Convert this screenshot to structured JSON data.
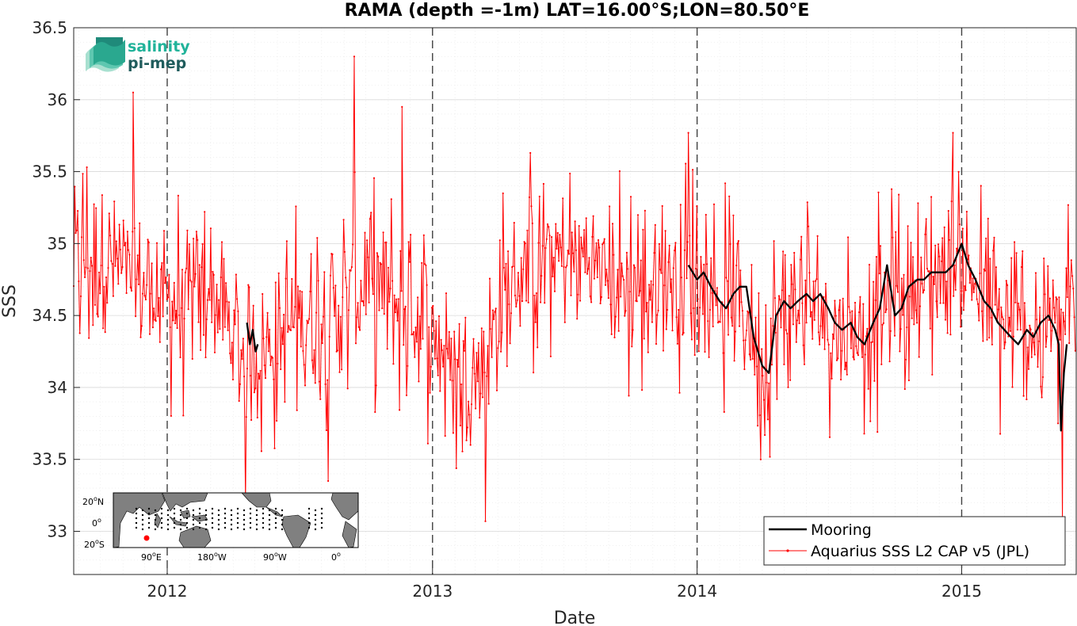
{
  "chart_data": {
    "type": "line",
    "title": "RAMA (depth =-1m) LAT=16.00°S;LON=80.50°E",
    "xlabel": "Date",
    "ylabel": "SSS",
    "xlim": [
      "2011-08-25",
      "2015-06-08"
    ],
    "ylim": [
      32.7,
      36.5
    ],
    "x_ticks": [
      "2012",
      "2013",
      "2014",
      "2015"
    ],
    "y_ticks": [
      "33",
      "33.5",
      "34",
      "34.5",
      "35",
      "35.5",
      "36",
      "36.5"
    ],
    "grid": true,
    "legend_position": "bottom-right",
    "year_markers": [
      "2012-01-01",
      "2013-01-01",
      "2014-01-01",
      "2015-01-01"
    ],
    "series": [
      {
        "name": "Mooring",
        "color": "#000000",
        "segments": [
          {
            "x": [
              "2012-04-20",
              "2012-04-24",
              "2012-04-28",
              "2012-05-02",
              "2012-05-05"
            ],
            "y": [
              34.45,
              34.3,
              34.4,
              34.25,
              34.3
            ]
          },
          {
            "x": [
              "2013-12-20",
              "2014-01-01",
              "2014-01-10",
              "2014-01-20",
              "2014-02-01",
              "2014-02-10",
              "2014-02-20",
              "2014-03-01",
              "2014-03-10",
              "2014-03-20",
              "2014-04-01",
              "2014-04-10",
              "2014-04-20",
              "2014-05-01",
              "2014-05-10",
              "2014-05-20",
              "2014-06-01",
              "2014-06-10",
              "2014-06-20",
              "2014-07-01",
              "2014-07-10",
              "2014-07-20",
              "2014-08-01",
              "2014-08-10",
              "2014-08-20",
              "2014-09-01",
              "2014-09-10",
              "2014-09-20",
              "2014-10-01",
              "2014-10-10",
              "2014-10-20",
              "2014-11-01",
              "2014-11-10",
              "2014-11-20",
              "2014-12-01",
              "2014-12-10",
              "2014-12-20",
              "2015-01-01",
              "2015-01-10",
              "2015-01-20",
              "2015-02-01",
              "2015-02-10",
              "2015-02-20",
              "2015-03-01",
              "2015-03-10",
              "2015-03-20",
              "2015-04-01",
              "2015-04-10",
              "2015-04-20",
              "2015-05-01",
              "2015-05-10",
              "2015-05-15",
              "2015-05-18",
              "2015-05-22",
              "2015-05-26"
            ],
            "y": [
              34.85,
              34.75,
              34.8,
              34.7,
              34.6,
              34.55,
              34.65,
              34.7,
              34.7,
              34.35,
              34.15,
              34.1,
              34.5,
              34.6,
              34.55,
              34.6,
              34.65,
              34.6,
              34.65,
              34.55,
              34.45,
              34.4,
              34.45,
              34.35,
              34.3,
              34.45,
              34.55,
              34.85,
              34.5,
              34.55,
              34.7,
              34.75,
              34.75,
              34.8,
              34.8,
              34.8,
              34.85,
              35.0,
              34.85,
              34.75,
              34.6,
              34.55,
              34.45,
              34.4,
              34.35,
              34.3,
              34.4,
              34.35,
              34.45,
              34.5,
              34.4,
              34.3,
              33.7,
              34.1,
              34.3
            ]
          }
        ]
      },
      {
        "name": "Aquarius SSS L2 CAP v5 (JPL)",
        "color": "#ff0000",
        "x_start": "2011-08-25",
        "x_end": "2015-06-08",
        "anchors": [
          {
            "x": "2011-09-01",
            "y": 34.9
          },
          {
            "x": "2011-10-01",
            "y": 34.9
          },
          {
            "x": "2011-11-01",
            "y": 34.8
          },
          {
            "x": "2011-12-01",
            "y": 34.7
          },
          {
            "x": "2012-01-01",
            "y": 34.6
          },
          {
            "x": "2012-02-01",
            "y": 34.6
          },
          {
            "x": "2012-03-01",
            "y": 34.7
          },
          {
            "x": "2012-04-01",
            "y": 34.3
          },
          {
            "x": "2012-05-01",
            "y": 34.2
          },
          {
            "x": "2012-06-01",
            "y": 34.3
          },
          {
            "x": "2012-07-01",
            "y": 34.5
          },
          {
            "x": "2012-08-01",
            "y": 34.5
          },
          {
            "x": "2012-09-01",
            "y": 34.6
          },
          {
            "x": "2012-10-01",
            "y": 34.7
          },
          {
            "x": "2012-11-01",
            "y": 34.6
          },
          {
            "x": "2012-12-01",
            "y": 34.6
          },
          {
            "x": "2013-01-01",
            "y": 34.4
          },
          {
            "x": "2013-02-01",
            "y": 34.1
          },
          {
            "x": "2013-03-01",
            "y": 34.1
          },
          {
            "x": "2013-04-01",
            "y": 34.5
          },
          {
            "x": "2013-05-01",
            "y": 34.8
          },
          {
            "x": "2013-06-01",
            "y": 34.9
          },
          {
            "x": "2013-07-01",
            "y": 34.9
          },
          {
            "x": "2013-08-01",
            "y": 34.9
          },
          {
            "x": "2013-09-01",
            "y": 34.8
          },
          {
            "x": "2013-10-01",
            "y": 34.7
          },
          {
            "x": "2013-11-01",
            "y": 34.7
          },
          {
            "x": "2013-12-01",
            "y": 34.8
          },
          {
            "x": "2014-01-01",
            "y": 34.8
          },
          {
            "x": "2014-02-01",
            "y": 34.6
          },
          {
            "x": "2014-03-01",
            "y": 34.6
          },
          {
            "x": "2014-04-01",
            "y": 34.2
          },
          {
            "x": "2014-05-01",
            "y": 34.5
          },
          {
            "x": "2014-06-01",
            "y": 34.6
          },
          {
            "x": "2014-07-01",
            "y": 34.5
          },
          {
            "x": "2014-08-01",
            "y": 34.4
          },
          {
            "x": "2014-09-01",
            "y": 34.5
          },
          {
            "x": "2014-10-01",
            "y": 34.6
          },
          {
            "x": "2014-11-01",
            "y": 34.7
          },
          {
            "x": "2014-12-01",
            "y": 34.8
          },
          {
            "x": "2015-01-01",
            "y": 34.9
          },
          {
            "x": "2015-02-01",
            "y": 34.6
          },
          {
            "x": "2015-03-01",
            "y": 34.4
          },
          {
            "x": "2015-04-01",
            "y": 34.4
          },
          {
            "x": "2015-05-01",
            "y": 34.4
          },
          {
            "x": "2015-06-01",
            "y": 34.5
          }
        ],
        "notable_points": [
          {
            "x": "2011-11-15",
            "y": 36.05
          },
          {
            "x": "2012-04-18",
            "y": 33.2
          },
          {
            "x": "2012-08-10",
            "y": 33.35
          },
          {
            "x": "2012-09-15",
            "y": 36.3
          },
          {
            "x": "2012-11-20",
            "y": 35.95
          },
          {
            "x": "2013-03-15",
            "y": 33.07
          },
          {
            "x": "2013-12-20",
            "y": 35.77
          },
          {
            "x": "2014-12-20",
            "y": 35.77
          },
          {
            "x": "2015-05-20",
            "y": 33.05
          }
        ]
      }
    ]
  },
  "logo": {
    "line1": "salinity",
    "line2": "pi-mep"
  },
  "inset_map": {
    "lat_labels": [
      "20",
      "0",
      "20"
    ],
    "lat_suffix": [
      "N",
      "",
      "S"
    ],
    "lon_labels": [
      "90",
      "180",
      "90",
      "0"
    ],
    "lon_suffix": [
      "E",
      "W",
      "W",
      ""
    ],
    "degree_mark": "o",
    "land_color": "#808080",
    "ocean_color": "#ffffff",
    "marker_color": "#ff0000"
  }
}
